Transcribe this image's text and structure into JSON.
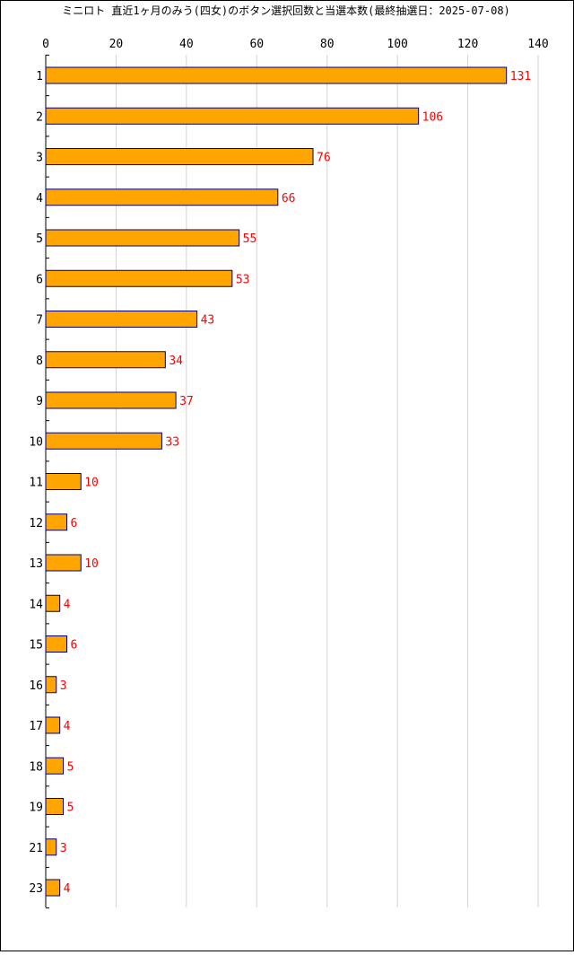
{
  "chart_data": {
    "type": "bar",
    "orientation": "horizontal",
    "title": "ミニロト 直近1ヶ月のみう(四女)のボタン選択回数と当選本数(最終抽選日：2025-07-08)",
    "categories": [
      "1",
      "2",
      "3",
      "4",
      "5",
      "6",
      "7",
      "8",
      "9",
      "10",
      "11",
      "12",
      "13",
      "14",
      "15",
      "16",
      "17",
      "18",
      "19",
      "21",
      "23"
    ],
    "values": [
      131,
      106,
      76,
      66,
      55,
      53,
      43,
      34,
      37,
      33,
      10,
      6,
      10,
      4,
      6,
      3,
      4,
      5,
      5,
      3,
      4
    ],
    "xlim": [
      0,
      140
    ],
    "x_ticks": [
      0,
      20,
      40,
      60,
      80,
      100,
      120,
      140
    ],
    "grid": "vertical",
    "colors": {
      "bar_fill": "#FFA500",
      "bar_stroke": "#000080",
      "value_label": "#FF0000",
      "grid": "#D3D3D3",
      "axis": "#000000"
    }
  }
}
